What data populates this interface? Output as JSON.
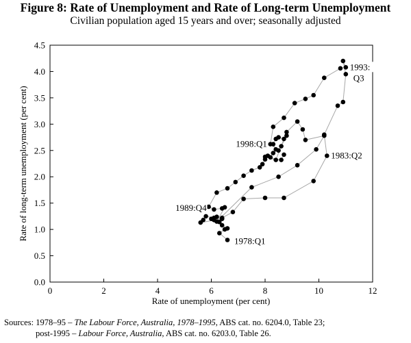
{
  "figure": {
    "title": "Figure 8: Rate of Unemployment and Rate of Long-term Unemployment",
    "subtitle": "Civilian population aged 15 years and over; seasonally adjusted"
  },
  "chart_data": {
    "type": "scatter",
    "connected": true,
    "xlabel": "Rate of unemployment (per cent)",
    "ylabel": "Rate of long-term unemployment (per cent)",
    "xlim": [
      0,
      12
    ],
    "ylim": [
      0,
      4.5
    ],
    "xticks": [
      0,
      2,
      4,
      6,
      8,
      10,
      12
    ],
    "yticks": [
      0.0,
      0.5,
      1.0,
      1.5,
      2.0,
      2.5,
      3.0,
      3.5,
      4.0,
      4.5
    ],
    "ytick_labels": [
      "0.0",
      "0.5",
      "1.0",
      "1.5",
      "2.0",
      "2.5",
      "3.0",
      "3.5",
      "4.0",
      "4.5"
    ],
    "grid": false,
    "points": [
      [
        6.6,
        0.8
      ],
      [
        6.3,
        0.93
      ],
      [
        6.5,
        1.0
      ],
      [
        6.6,
        1.02
      ],
      [
        6.4,
        1.08
      ],
      [
        6.3,
        1.14
      ],
      [
        6.1,
        1.18
      ],
      [
        6.0,
        1.2
      ],
      [
        6.2,
        1.24
      ],
      [
        6.4,
        1.2
      ],
      [
        5.6,
        1.13
      ],
      [
        5.7,
        1.18
      ],
      [
        5.8,
        1.25
      ],
      [
        6.1,
        1.22
      ],
      [
        6.4,
        1.22
      ],
      [
        6.8,
        1.33
      ],
      [
        7.2,
        1.58
      ],
      [
        8.0,
        1.6
      ],
      [
        8.7,
        1.6
      ],
      [
        9.8,
        1.92
      ],
      [
        10.3,
        2.4
      ],
      [
        10.2,
        2.8
      ],
      [
        10.7,
        3.35
      ],
      [
        10.9,
        3.42
      ],
      [
        11.0,
        3.95
      ],
      [
        10.9,
        4.2
      ],
      [
        11.0,
        4.08
      ],
      [
        10.8,
        4.06
      ],
      [
        10.2,
        3.88
      ],
      [
        9.8,
        3.55
      ],
      [
        9.5,
        3.48
      ],
      [
        9.1,
        3.4
      ],
      [
        8.7,
        3.12
      ],
      [
        8.3,
        2.95
      ],
      [
        8.2,
        2.62
      ],
      [
        8.5,
        2.5
      ],
      [
        8.6,
        2.58
      ],
      [
        8.8,
        2.78
      ],
      [
        8.7,
        2.72
      ],
      [
        8.5,
        2.75
      ],
      [
        8.4,
        2.72
      ],
      [
        8.3,
        2.62
      ],
      [
        8.4,
        2.52
      ],
      [
        8.3,
        2.45
      ],
      [
        8.2,
        2.37
      ],
      [
        8.1,
        2.4
      ],
      [
        8.0,
        2.33
      ],
      [
        7.9,
        2.24
      ],
      [
        7.8,
        2.18
      ],
      [
        7.5,
        2.12
      ],
      [
        7.2,
        2.02
      ],
      [
        6.9,
        1.9
      ],
      [
        6.6,
        1.78
      ],
      [
        6.2,
        1.7
      ],
      [
        5.9,
        1.43
      ],
      [
        6.1,
        1.38
      ],
      [
        6.4,
        1.4
      ],
      [
        6.5,
        1.42
      ],
      [
        6.2,
        1.15
      ],
      [
        7.5,
        1.8
      ],
      [
        8.5,
        2.0
      ],
      [
        9.2,
        2.22
      ],
      [
        9.9,
        2.52
      ],
      [
        10.2,
        2.78
      ],
      [
        9.5,
        2.7
      ],
      [
        9.4,
        2.9
      ],
      [
        9.2,
        3.05
      ],
      [
        8.8,
        2.85
      ],
      [
        8.4,
        2.32
      ],
      [
        8.0,
        2.38
      ],
      [
        8.6,
        2.32
      ],
      [
        8.7,
        2.42
      ]
    ],
    "annotations": [
      {
        "text": "1978:Q1",
        "x": 6.6,
        "y": 0.8
      },
      {
        "text": "1989:Q4",
        "x": 5.9,
        "y": 1.43
      },
      {
        "text": "1998:Q1",
        "x": 8.2,
        "y": 2.62
      },
      {
        "text": "1983:Q2",
        "x": 10.3,
        "y": 2.4
      },
      {
        "text": "1993:",
        "x": 11.0,
        "y": 4.08
      },
      {
        "text": "Q3",
        "x": 11.0,
        "y": 4.08
      }
    ]
  },
  "sources": {
    "label": "Sources:",
    "line1_a": "1978–95 – ",
    "line1_italic": "The Labour Force, Australia, 1978–1995",
    "line1_b": ", ABS cat. no. 6204.0, Table 23;",
    "line2_a": "post-1995 – ",
    "line2_italic": "Labour Force, Australia",
    "line2_b": ", ABS cat. no. 6203.0, Table 26."
  }
}
